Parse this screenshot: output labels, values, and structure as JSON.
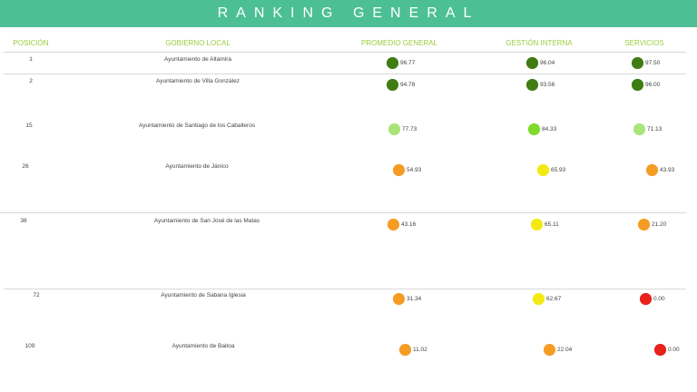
{
  "title": "RANKING GENERAL",
  "headers": {
    "posicion": "POSICIÓN",
    "gobierno": "GOBIERNO LOCAL",
    "promedio": "PROMEDIO GENERAL",
    "gestion": "GESTIÓN INTERNA",
    "servicios": "SERVICIOS"
  },
  "colors": {
    "banner": "#4dbf96",
    "header_text": "#9ccc3c",
    "dark_green": "#3f7d12",
    "light_green": "#a9e57a",
    "lime": "#7edb2a",
    "yellow": "#f2ea12",
    "orange": "#f59c24",
    "red": "#e8211c"
  },
  "rows": [
    {
      "position": "1",
      "name": "Ayuntamiento de Altamira",
      "promedio": "96.77",
      "gestion": "96.04",
      "servicios": "97.50",
      "promedio_color": "#3f7d12",
      "gestion_color": "#3f7d12",
      "servicios_color": "#3f7d12"
    },
    {
      "position": "2",
      "name": "Ayuntamiento de Villa González",
      "promedio": "94.78",
      "gestion": "93.56",
      "servicios": "96.00",
      "promedio_color": "#3f7d12",
      "gestion_color": "#3f7d12",
      "servicios_color": "#3f7d12"
    },
    {
      "position": "15",
      "name": "Ayuntamiento de Santiago de los Caballeros",
      "promedio": "77.73",
      "gestion": "84.33",
      "servicios": "71.13",
      "promedio_color": "#a9e57a",
      "gestion_color": "#7edb2a",
      "servicios_color": "#a9e57a"
    },
    {
      "position": "26",
      "name": "Ayuntamiento de Jánico",
      "promedio": "54.93",
      "gestion": "65.93",
      "servicios": "43.93",
      "promedio_color": "#f59c24",
      "gestion_color": "#f2ea12",
      "servicios_color": "#f59c24"
    },
    {
      "position": "38",
      "name": "Ayuntamiento de San José de las Matas",
      "promedio": "43.16",
      "gestion": "65.11",
      "servicios": "21.20",
      "promedio_color": "#f59c24",
      "gestion_color": "#f2ea12",
      "servicios_color": "#f59c24"
    },
    {
      "position": "72",
      "name": "Ayuntamiento de Sabana Iglesia",
      "promedio": "31.34",
      "gestion": "62.67",
      "servicios": "0.00",
      "promedio_color": "#f59c24",
      "gestion_color": "#f2ea12",
      "servicios_color": "#e8211c"
    },
    {
      "position": "109",
      "name": "Ayuntamiento de Baitoa",
      "promedio": "11.02",
      "gestion": "22.04",
      "servicios": "0.00",
      "promedio_color": "#f59c24",
      "gestion_color": "#f59c24",
      "servicios_color": "#e8211c"
    }
  ]
}
